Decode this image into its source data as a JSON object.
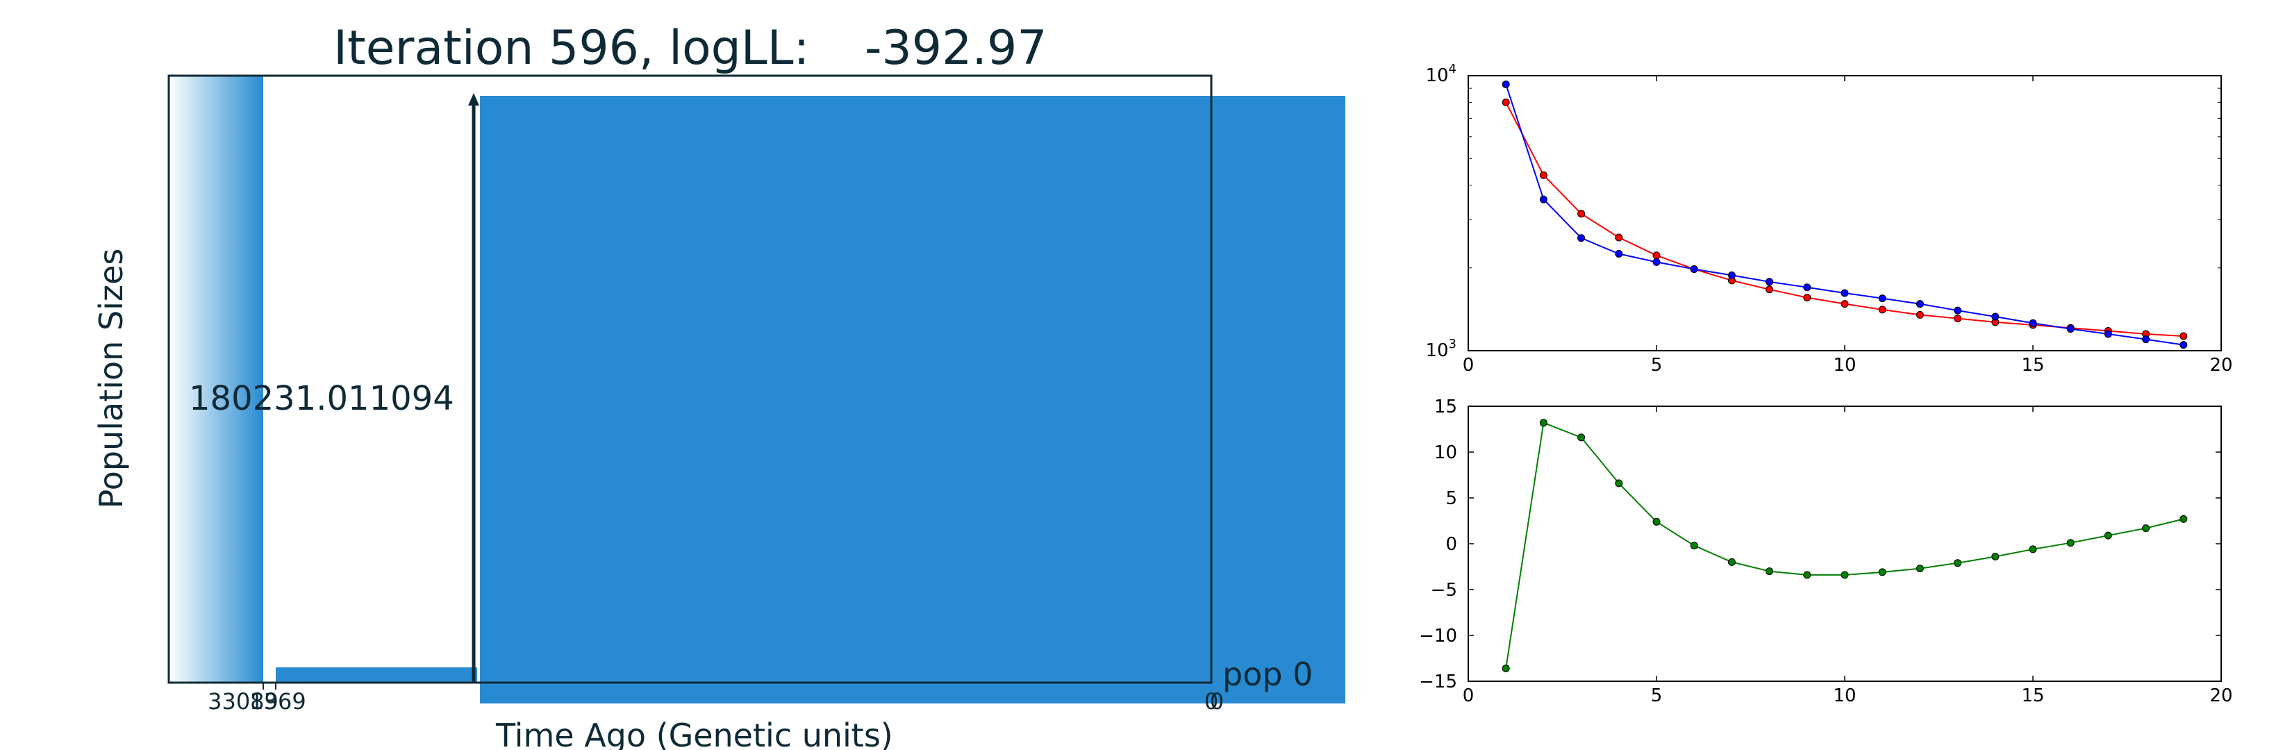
{
  "chart_data": [
    {
      "type": "area",
      "panel": "left",
      "title_prefix": "Iteration 596, logLL:",
      "title_value": "-392.97",
      "ylabel": "Population Sizes",
      "xlabel": "Time Ago (Genetic units)",
      "size_label": "180231.011094",
      "pop_label": "pop 0",
      "xtick_labels": [
        "33089",
        "1369",
        "0",
        "0"
      ],
      "fill_color": "#288bd2",
      "text_color": "#0e2a36"
    },
    {
      "type": "line",
      "panel": "top-right",
      "yscale": "log",
      "ylim": [
        1000,
        10000
      ],
      "xlim": [
        0,
        20
      ],
      "xticks": [
        0,
        5,
        10,
        15,
        20
      ],
      "ytick_labels": [
        {
          "base": "10",
          "exp": "3"
        },
        {
          "base": "10",
          "exp": "4"
        }
      ],
      "x": [
        1,
        2,
        3,
        4,
        5,
        6,
        7,
        8,
        9,
        10,
        11,
        12,
        13,
        14,
        15,
        16,
        17,
        18,
        19
      ],
      "series": [
        {
          "color": "#ff0000",
          "values": [
            8000,
            4350,
            3150,
            2580,
            2220,
            1980,
            1800,
            1670,
            1560,
            1480,
            1410,
            1350,
            1310,
            1270,
            1240,
            1210,
            1180,
            1150,
            1130
          ]
        },
        {
          "color": "#0000ff",
          "values": [
            9300,
            3550,
            2570,
            2250,
            2100,
            1980,
            1880,
            1780,
            1700,
            1620,
            1550,
            1480,
            1400,
            1330,
            1260,
            1200,
            1150,
            1100,
            1050
          ]
        }
      ]
    },
    {
      "type": "line",
      "panel": "bottom-right",
      "ylim": [
        -15,
        15
      ],
      "xlim": [
        0,
        20
      ],
      "xticks": [
        0,
        5,
        10,
        15,
        20
      ],
      "yticks": [
        -15,
        -10,
        -5,
        0,
        5,
        10,
        15
      ],
      "x": [
        1,
        2,
        3,
        4,
        5,
        6,
        7,
        8,
        9,
        10,
        11,
        12,
        13,
        14,
        15,
        16,
        17,
        18,
        19
      ],
      "series": [
        {
          "color": "#008000",
          "values": [
            -13.6,
            13.2,
            11.6,
            6.6,
            2.4,
            -0.2,
            -2.0,
            -3.0,
            -3.4,
            -3.4,
            -3.1,
            -2.7,
            -2.1,
            -1.4,
            -0.6,
            0.1,
            0.9,
            1.7,
            2.7
          ]
        }
      ]
    }
  ]
}
